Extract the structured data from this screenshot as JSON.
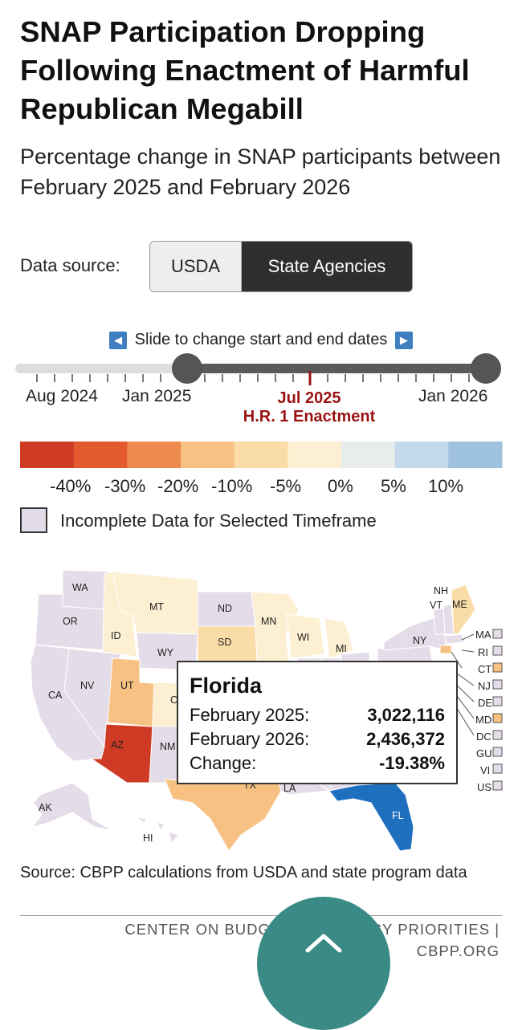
{
  "header": {
    "title": "SNAP Participation Dropping Following Enactment of Harmful Republican Megabill",
    "subtitle": "Percentage change in SNAP participants between February 2025 and February 2026"
  },
  "data_source": {
    "label": "Data source:",
    "options": [
      "USDA",
      "State Agencies"
    ],
    "selected": "State Agencies"
  },
  "timeline": {
    "hint": "Slide to change start and end dates",
    "labels": [
      "Aug 2024",
      "Jan 2025",
      "Jan 2026"
    ],
    "marker_date": "Jul 2025",
    "marker_label": "H.R. 1 Enactment",
    "range_start": "Jan 2025",
    "range_end": "Jan 2026"
  },
  "legend": {
    "colors": [
      "#cf3a25",
      "#e25a2d",
      "#ee8a4d",
      "#f6c183",
      "#f9dca8",
      "#fcefd2",
      "#e9ecec",
      "#c3d8ea",
      "#9dc1de"
    ],
    "labels": [
      "-40%",
      "-30%",
      "-20%",
      "-10%",
      "-5%",
      "0%",
      "5%",
      "10%"
    ],
    "incomplete": "Incomplete Data for Selected Timeframe"
  },
  "map": {
    "state_labels": [
      "WA",
      "OR",
      "CA",
      "NV",
      "ID",
      "MT",
      "WY",
      "UT",
      "AZ",
      "NM",
      "ND",
      "SD",
      "MN",
      "WI",
      "MI",
      "NY",
      "ME",
      "NH",
      "VT",
      "TX",
      "LA",
      "FL",
      "AK",
      "HI",
      "C",
      "C"
    ],
    "side_labels": [
      "MA",
      "RI",
      "CT",
      "NJ",
      "DE",
      "MD",
      "DC",
      "GU",
      "VI",
      "US"
    ],
    "side_status": [
      "incomplete",
      "incomplete",
      "decline",
      "incomplete",
      "incomplete",
      "decline",
      "incomplete",
      "incomplete",
      "incomplete",
      "incomplete"
    ]
  },
  "tooltip": {
    "state": "Florida",
    "rows": [
      {
        "label": "February 2025:",
        "value": "3,022,116"
      },
      {
        "label": "February 2026:",
        "value": "2,436,372"
      },
      {
        "label": "Change:",
        "value": "-19.38%"
      }
    ]
  },
  "footer": {
    "source": "Source: CBPP calculations from USDA and state program data",
    "org_line1": "CENTER ON BUDGET AND POLICY PRIORITIES |",
    "org_line2": "CBPP.ORG"
  }
}
